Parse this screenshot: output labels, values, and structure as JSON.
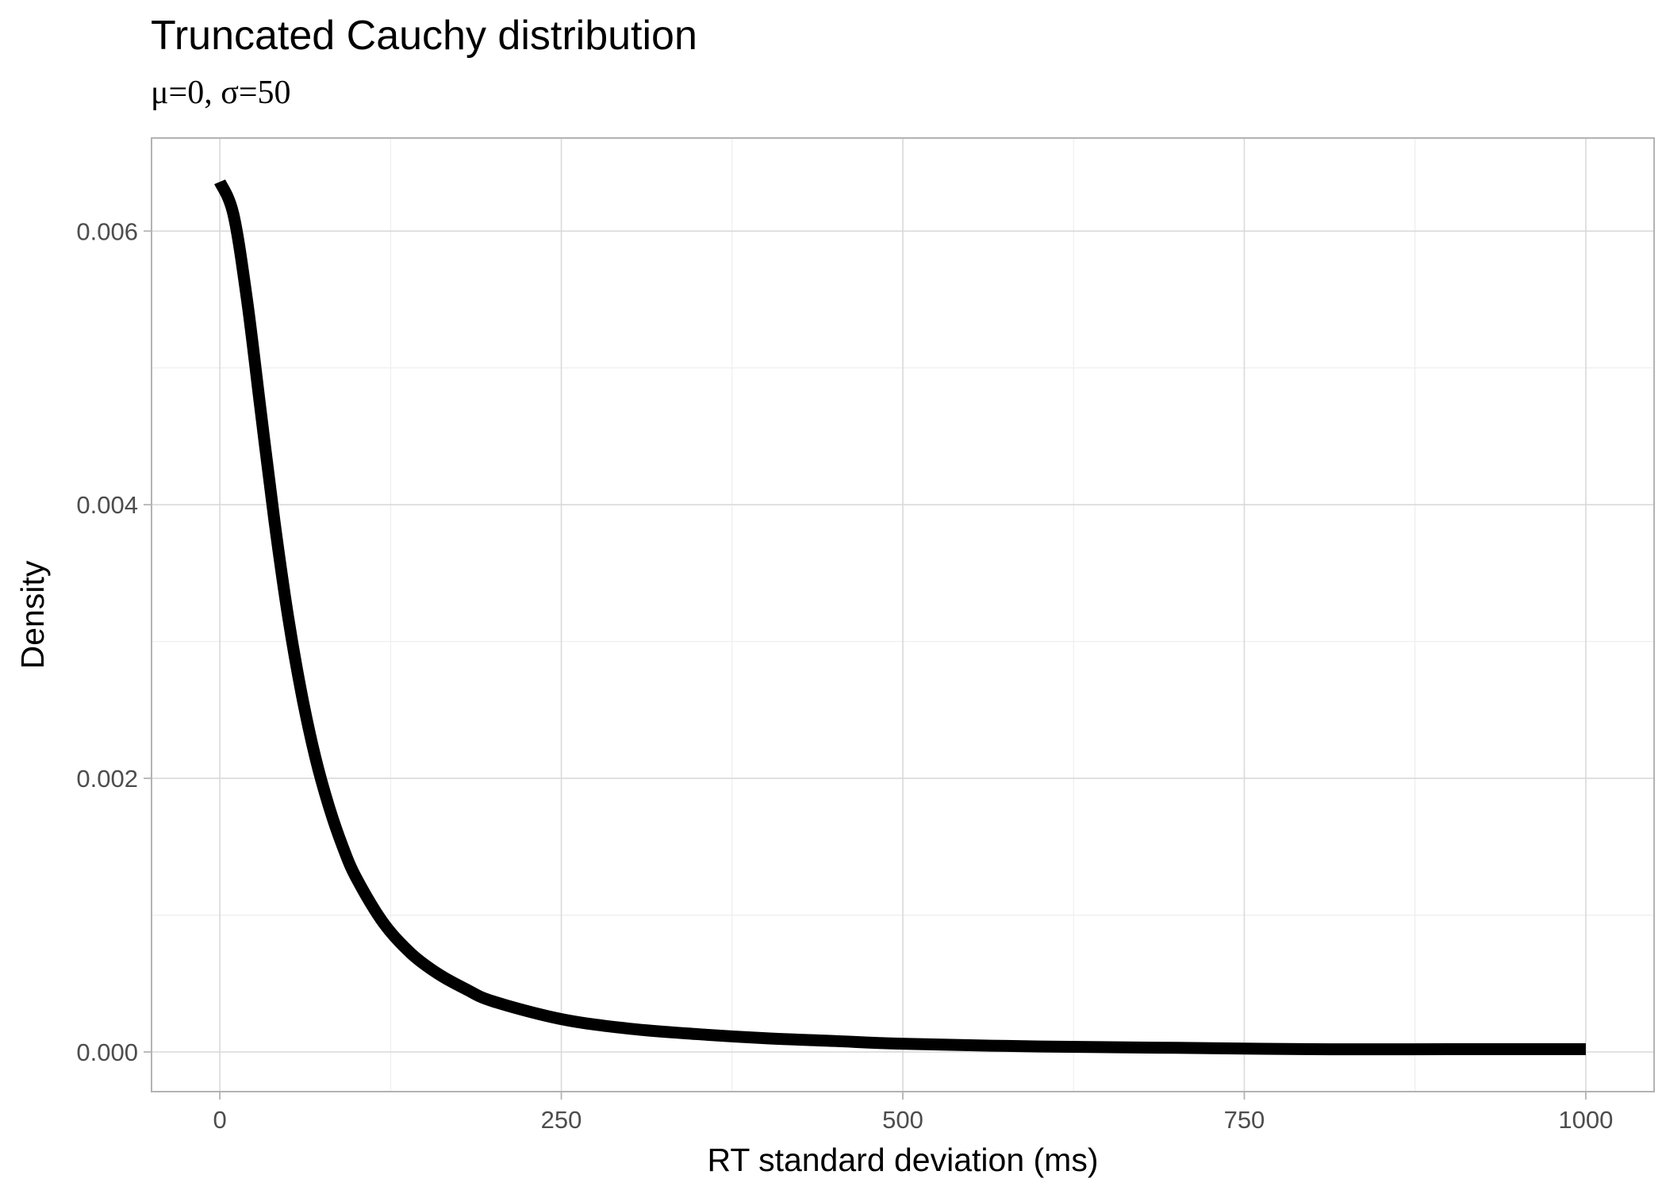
{
  "chart_data": {
    "type": "line",
    "title": "Truncated Cauchy distribution",
    "subtitle": "μ=0, σ=50",
    "xlabel": "RT standard deviation (ms)",
    "ylabel": "Density",
    "xlim": [
      -50,
      1050
    ],
    "ylim": [
      -0.00029,
      0.00668
    ],
    "x_ticks": [
      0,
      250,
      500,
      750,
      1000
    ],
    "x_tick_labels": [
      "0",
      "250",
      "500",
      "750",
      "1000"
    ],
    "y_ticks": [
      0,
      0.002,
      0.004,
      0.006
    ],
    "y_tick_labels": [
      "0.000",
      "0.002",
      "0.004",
      "0.006"
    ],
    "grid": true,
    "series": [
      {
        "color": "#000000",
        "points": [
          [
            0,
            0.00636
          ],
          [
            10,
            0.00612
          ],
          [
            20,
            0.00549
          ],
          [
            30,
            0.00468
          ],
          [
            40,
            0.00388
          ],
          [
            50,
            0.00318
          ],
          [
            60,
            0.00261
          ],
          [
            70,
            0.00215
          ],
          [
            80,
            0.00179
          ],
          [
            90,
            0.0015
          ],
          [
            100,
            0.00127
          ],
          [
            120,
            0.00094
          ],
          [
            140,
            0.00072
          ],
          [
            160,
            0.00057
          ],
          [
            180,
            0.00046
          ],
          [
            200,
            0.00037
          ],
          [
            250,
            0.00024
          ],
          [
            300,
            0.00017
          ],
          [
            350,
            0.00013
          ],
          [
            400,
            0.0001
          ],
          [
            450,
            8e-05
          ],
          [
            500,
            6e-05
          ],
          [
            600,
            4e-05
          ],
          [
            700,
            3e-05
          ],
          [
            800,
            2e-05
          ],
          [
            900,
            2e-05
          ],
          [
            1000,
            2e-05
          ]
        ]
      }
    ]
  }
}
